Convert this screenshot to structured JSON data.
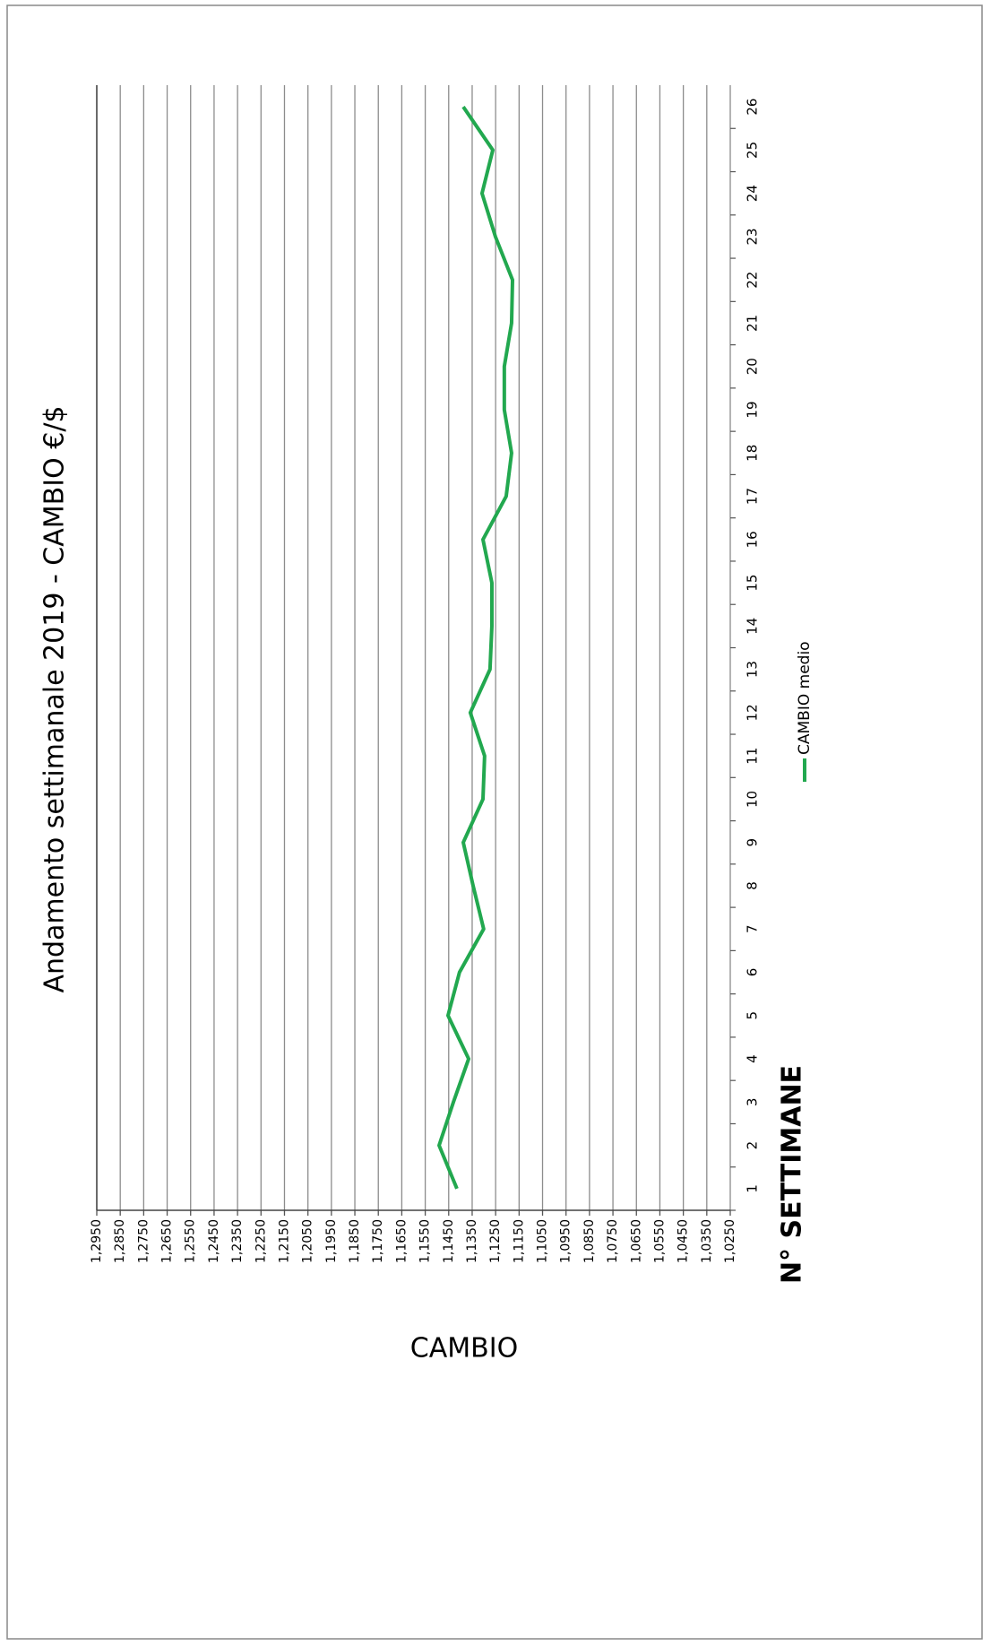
{
  "chart_data": {
    "type": "line",
    "title": "Andamento settimanale 2019 - CAMBIO €/$",
    "x_label": "N° SETTIMANE",
    "y_label": "CAMBIO",
    "categories": [
      "1",
      "2",
      "3",
      "4",
      "5",
      "6",
      "7",
      "8",
      "9",
      "10",
      "11",
      "12",
      "13",
      "14",
      "15",
      "16",
      "17",
      "18",
      "19",
      "20",
      "21",
      "22",
      "23",
      "24",
      "25",
      "26"
    ],
    "series": [
      {
        "name": "CAMBIO medio",
        "color": "#22a84f",
        "values": [
          1.1415,
          1.1491,
          1.143,
          1.1365,
          1.1453,
          1.1404,
          1.1301,
          1.1346,
          1.1388,
          1.1304,
          1.1297,
          1.1358,
          1.1274,
          1.1266,
          1.1266,
          1.1304,
          1.1205,
          1.1182,
          1.1213,
          1.1213,
          1.1182,
          1.1178,
          1.1251,
          1.1308,
          1.1262,
          1.1388
        ]
      }
    ],
    "ylim": [
      1.025,
      1.295
    ],
    "yticks": [
      {
        "value": 1.025,
        "label": "1,0250"
      },
      {
        "value": 1.035,
        "label": "1,0350"
      },
      {
        "value": 1.045,
        "label": "1,0450"
      },
      {
        "value": 1.055,
        "label": "1,0550"
      },
      {
        "value": 1.065,
        "label": "1,0650"
      },
      {
        "value": 1.075,
        "label": "1,0750"
      },
      {
        "value": 1.085,
        "label": "1,0850"
      },
      {
        "value": 1.095,
        "label": "1,0950"
      },
      {
        "value": 1.105,
        "label": "1,1050"
      },
      {
        "value": 1.115,
        "label": "1,1150"
      },
      {
        "value": 1.125,
        "label": "1,1250"
      },
      {
        "value": 1.135,
        "label": "1,1350"
      },
      {
        "value": 1.145,
        "label": "1,1450"
      },
      {
        "value": 1.155,
        "label": "1,1550"
      },
      {
        "value": 1.165,
        "label": "1,1650"
      },
      {
        "value": 1.175,
        "label": "1,1750"
      },
      {
        "value": 1.185,
        "label": "1,1850"
      },
      {
        "value": 1.195,
        "label": "1,1950"
      },
      {
        "value": 1.205,
        "label": "1,2050"
      },
      {
        "value": 1.215,
        "label": "1,2150"
      },
      {
        "value": 1.225,
        "label": "1,2250"
      },
      {
        "value": 1.235,
        "label": "1,2350"
      },
      {
        "value": 1.245,
        "label": "1,2450"
      },
      {
        "value": 1.255,
        "label": "1,2550"
      },
      {
        "value": 1.265,
        "label": "1,2650"
      },
      {
        "value": 1.275,
        "label": "1,2750"
      },
      {
        "value": 1.285,
        "label": "1,2850"
      },
      {
        "value": 1.295,
        "label": "1,2950"
      }
    ],
    "grid": true
  }
}
